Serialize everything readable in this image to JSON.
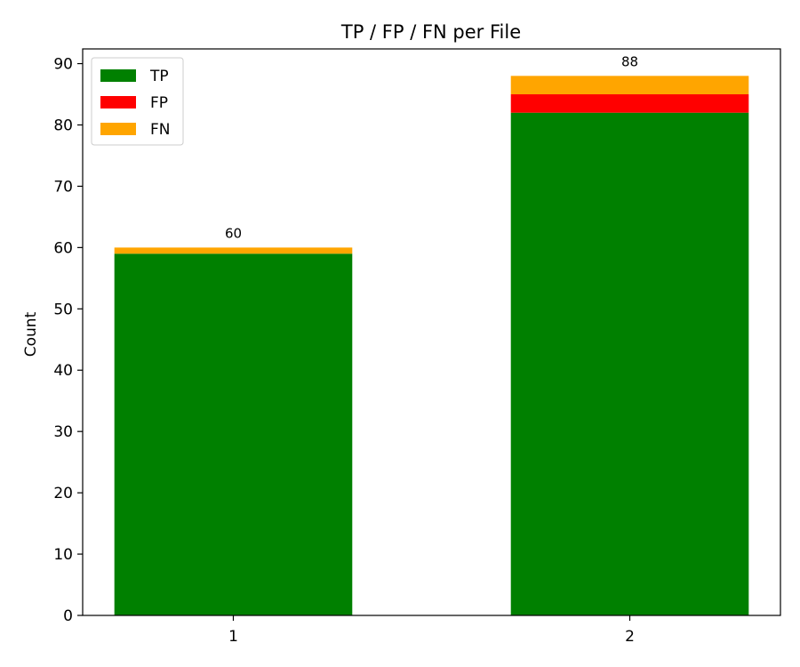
{
  "chart_data": {
    "type": "bar",
    "stacked": true,
    "title": "TP / FP / FN per File",
    "xlabel": "",
    "ylabel": "Count",
    "categories": [
      "1",
      "2"
    ],
    "series": [
      {
        "name": "TP",
        "color": "#008000",
        "values": [
          59,
          82
        ]
      },
      {
        "name": "FP",
        "color": "#ff0000",
        "values": [
          0,
          3
        ]
      },
      {
        "name": "FN",
        "color": "#ffa500",
        "values": [
          1,
          3
        ]
      }
    ],
    "totals": [
      "60",
      "88"
    ],
    "ylim": [
      0,
      92.4
    ],
    "yticks": [
      0,
      10,
      20,
      30,
      40,
      50,
      60,
      70,
      80,
      90
    ],
    "ytick_labels": [
      "0",
      "10",
      "20",
      "30",
      "40",
      "50",
      "60",
      "70",
      "80",
      "90"
    ],
    "grid": false,
    "legend_position": "upper-left"
  }
}
